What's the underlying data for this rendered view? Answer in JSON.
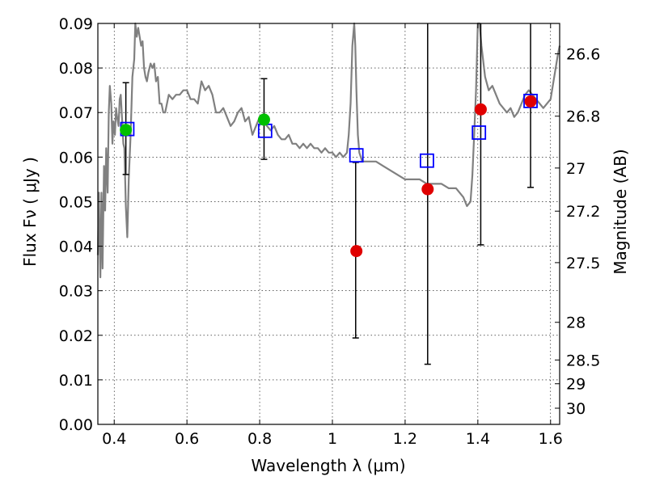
{
  "chart_data": {
    "type": "scatter",
    "title": "",
    "xlabel": "Wavelength  λ (μm)",
    "ylabel": "Flux  Fν  ( μJy )",
    "y2label": "Magnitude (AB)",
    "xlim": [
      0.355,
      1.625
    ],
    "ylim": [
      0.0,
      0.09
    ],
    "grid": true,
    "legend": "none",
    "x_ticks": [
      0.4,
      0.6,
      0.8,
      1.0,
      1.2,
      1.4,
      1.6
    ],
    "x_tick_labels": [
      "0.4",
      "0.6",
      "0.8",
      "1",
      "1.2",
      "1.4",
      "1.6"
    ],
    "y_ticks": [
      0.0,
      0.01,
      0.02,
      0.03,
      0.04,
      0.05,
      0.06,
      0.07,
      0.08,
      0.09
    ],
    "y_tick_labels": [
      "0.00",
      "0.01",
      "0.02",
      "0.03",
      "0.04",
      "0.05",
      "0.06",
      "0.07",
      "0.08",
      "0.09"
    ],
    "y2_ticks": [
      26.6,
      26.8,
      27,
      27.2,
      27.5,
      28,
      28.5,
      29,
      30
    ],
    "y2_tick_labels": [
      "26.6",
      "26.8",
      "27",
      "27.2",
      "27.5",
      "28",
      "28.5",
      "29",
      "30"
    ],
    "series": [
      {
        "kind": "line",
        "color": "#808080",
        "x": [
          0.355,
          0.358,
          0.362,
          0.365,
          0.368,
          0.372,
          0.375,
          0.378,
          0.382,
          0.385,
          0.388,
          0.392,
          0.395,
          0.398,
          0.402,
          0.405,
          0.408,
          0.412,
          0.415,
          0.418,
          0.422,
          0.425,
          0.428,
          0.432,
          0.436,
          0.44,
          0.445,
          0.45,
          0.455,
          0.458,
          0.462,
          0.466,
          0.47,
          0.474,
          0.478,
          0.482,
          0.486,
          0.49,
          0.494,
          0.5,
          0.505,
          0.51,
          0.515,
          0.52,
          0.525,
          0.53,
          0.535,
          0.54,
          0.55,
          0.56,
          0.57,
          0.58,
          0.59,
          0.6,
          0.61,
          0.62,
          0.63,
          0.64,
          0.65,
          0.66,
          0.67,
          0.68,
          0.69,
          0.7,
          0.71,
          0.72,
          0.73,
          0.74,
          0.75,
          0.76,
          0.77,
          0.78,
          0.79,
          0.8,
          0.81,
          0.82,
          0.83,
          0.84,
          0.85,
          0.86,
          0.87,
          0.88,
          0.89,
          0.9,
          0.91,
          0.92,
          0.93,
          0.94,
          0.95,
          0.96,
          0.97,
          0.98,
          0.99,
          1.0,
          1.01,
          1.02,
          1.03,
          1.04,
          1.045,
          1.05,
          1.055,
          1.06,
          1.063,
          1.066,
          1.07,
          1.074,
          1.078,
          1.082,
          1.09,
          1.1,
          1.12,
          1.14,
          1.16,
          1.18,
          1.2,
          1.22,
          1.24,
          1.26,
          1.28,
          1.3,
          1.32,
          1.34,
          1.36,
          1.37,
          1.38,
          1.385,
          1.39,
          1.395,
          1.4,
          1.405,
          1.41,
          1.42,
          1.43,
          1.44,
          1.45,
          1.46,
          1.47,
          1.48,
          1.49,
          1.5,
          1.51,
          1.52,
          1.53,
          1.54,
          1.55,
          1.56,
          1.57,
          1.58,
          1.59,
          1.6,
          1.61,
          1.62,
          1.625
        ],
        "y": [
          0.038,
          0.052,
          0.033,
          0.052,
          0.035,
          0.058,
          0.048,
          0.062,
          0.052,
          0.07,
          0.076,
          0.072,
          0.063,
          0.068,
          0.065,
          0.071,
          0.069,
          0.067,
          0.073,
          0.074,
          0.068,
          0.063,
          0.062,
          0.049,
          0.042,
          0.055,
          0.065,
          0.078,
          0.082,
          0.09,
          0.087,
          0.089,
          0.087,
          0.085,
          0.086,
          0.08,
          0.078,
          0.077,
          0.079,
          0.081,
          0.08,
          0.081,
          0.077,
          0.078,
          0.072,
          0.072,
          0.07,
          0.07,
          0.074,
          0.073,
          0.074,
          0.074,
          0.075,
          0.075,
          0.073,
          0.073,
          0.072,
          0.077,
          0.075,
          0.076,
          0.074,
          0.07,
          0.07,
          0.071,
          0.069,
          0.067,
          0.068,
          0.07,
          0.071,
          0.068,
          0.069,
          0.065,
          0.067,
          0.069,
          0.068,
          0.067,
          0.066,
          0.067,
          0.065,
          0.064,
          0.064,
          0.065,
          0.063,
          0.063,
          0.062,
          0.063,
          0.062,
          0.063,
          0.062,
          0.062,
          0.061,
          0.062,
          0.061,
          0.061,
          0.06,
          0.061,
          0.06,
          0.061,
          0.065,
          0.072,
          0.085,
          0.09,
          0.085,
          0.075,
          0.065,
          0.061,
          0.06,
          0.059,
          0.059,
          0.059,
          0.059,
          0.058,
          0.057,
          0.056,
          0.055,
          0.055,
          0.055,
          0.054,
          0.054,
          0.054,
          0.053,
          0.053,
          0.051,
          0.049,
          0.05,
          0.056,
          0.065,
          0.075,
          0.09,
          0.09,
          0.085,
          0.078,
          0.075,
          0.076,
          0.074,
          0.072,
          0.071,
          0.07,
          0.071,
          0.069,
          0.07,
          0.072,
          0.074,
          0.075,
          0.074,
          0.073,
          0.072,
          0.071,
          0.072,
          0.073,
          0.078,
          0.083,
          0.085
        ]
      },
      {
        "kind": "errorbar",
        "color": "#000000",
        "x": [
          0.432,
          0.812,
          1.064,
          1.262,
          1.408,
          1.545
        ],
        "y_low": [
          0.0561,
          0.0595,
          0.0194,
          0.0135,
          0.0403,
          0.0532
        ],
        "y_high": [
          0.0767,
          0.0776,
          0.0588,
          0.09,
          0.09,
          0.09
        ]
      },
      {
        "kind": "square",
        "color": "#0000ff",
        "x": [
          0.436,
          0.815,
          1.066,
          1.26,
          1.403,
          1.545
        ],
        "y": [
          0.0663,
          0.0659,
          0.0604,
          0.0592,
          0.0655,
          0.0726
        ]
      },
      {
        "kind": "circle",
        "color": "#00c000",
        "x": [
          0.432,
          0.812
        ],
        "y": [
          0.0661,
          0.0684
        ]
      },
      {
        "kind": "circle",
        "color": "#e00000",
        "x": [
          1.066,
          1.262,
          1.408,
          1.545
        ],
        "y": [
          0.0389,
          0.0528,
          0.0707,
          0.0725
        ]
      }
    ]
  }
}
